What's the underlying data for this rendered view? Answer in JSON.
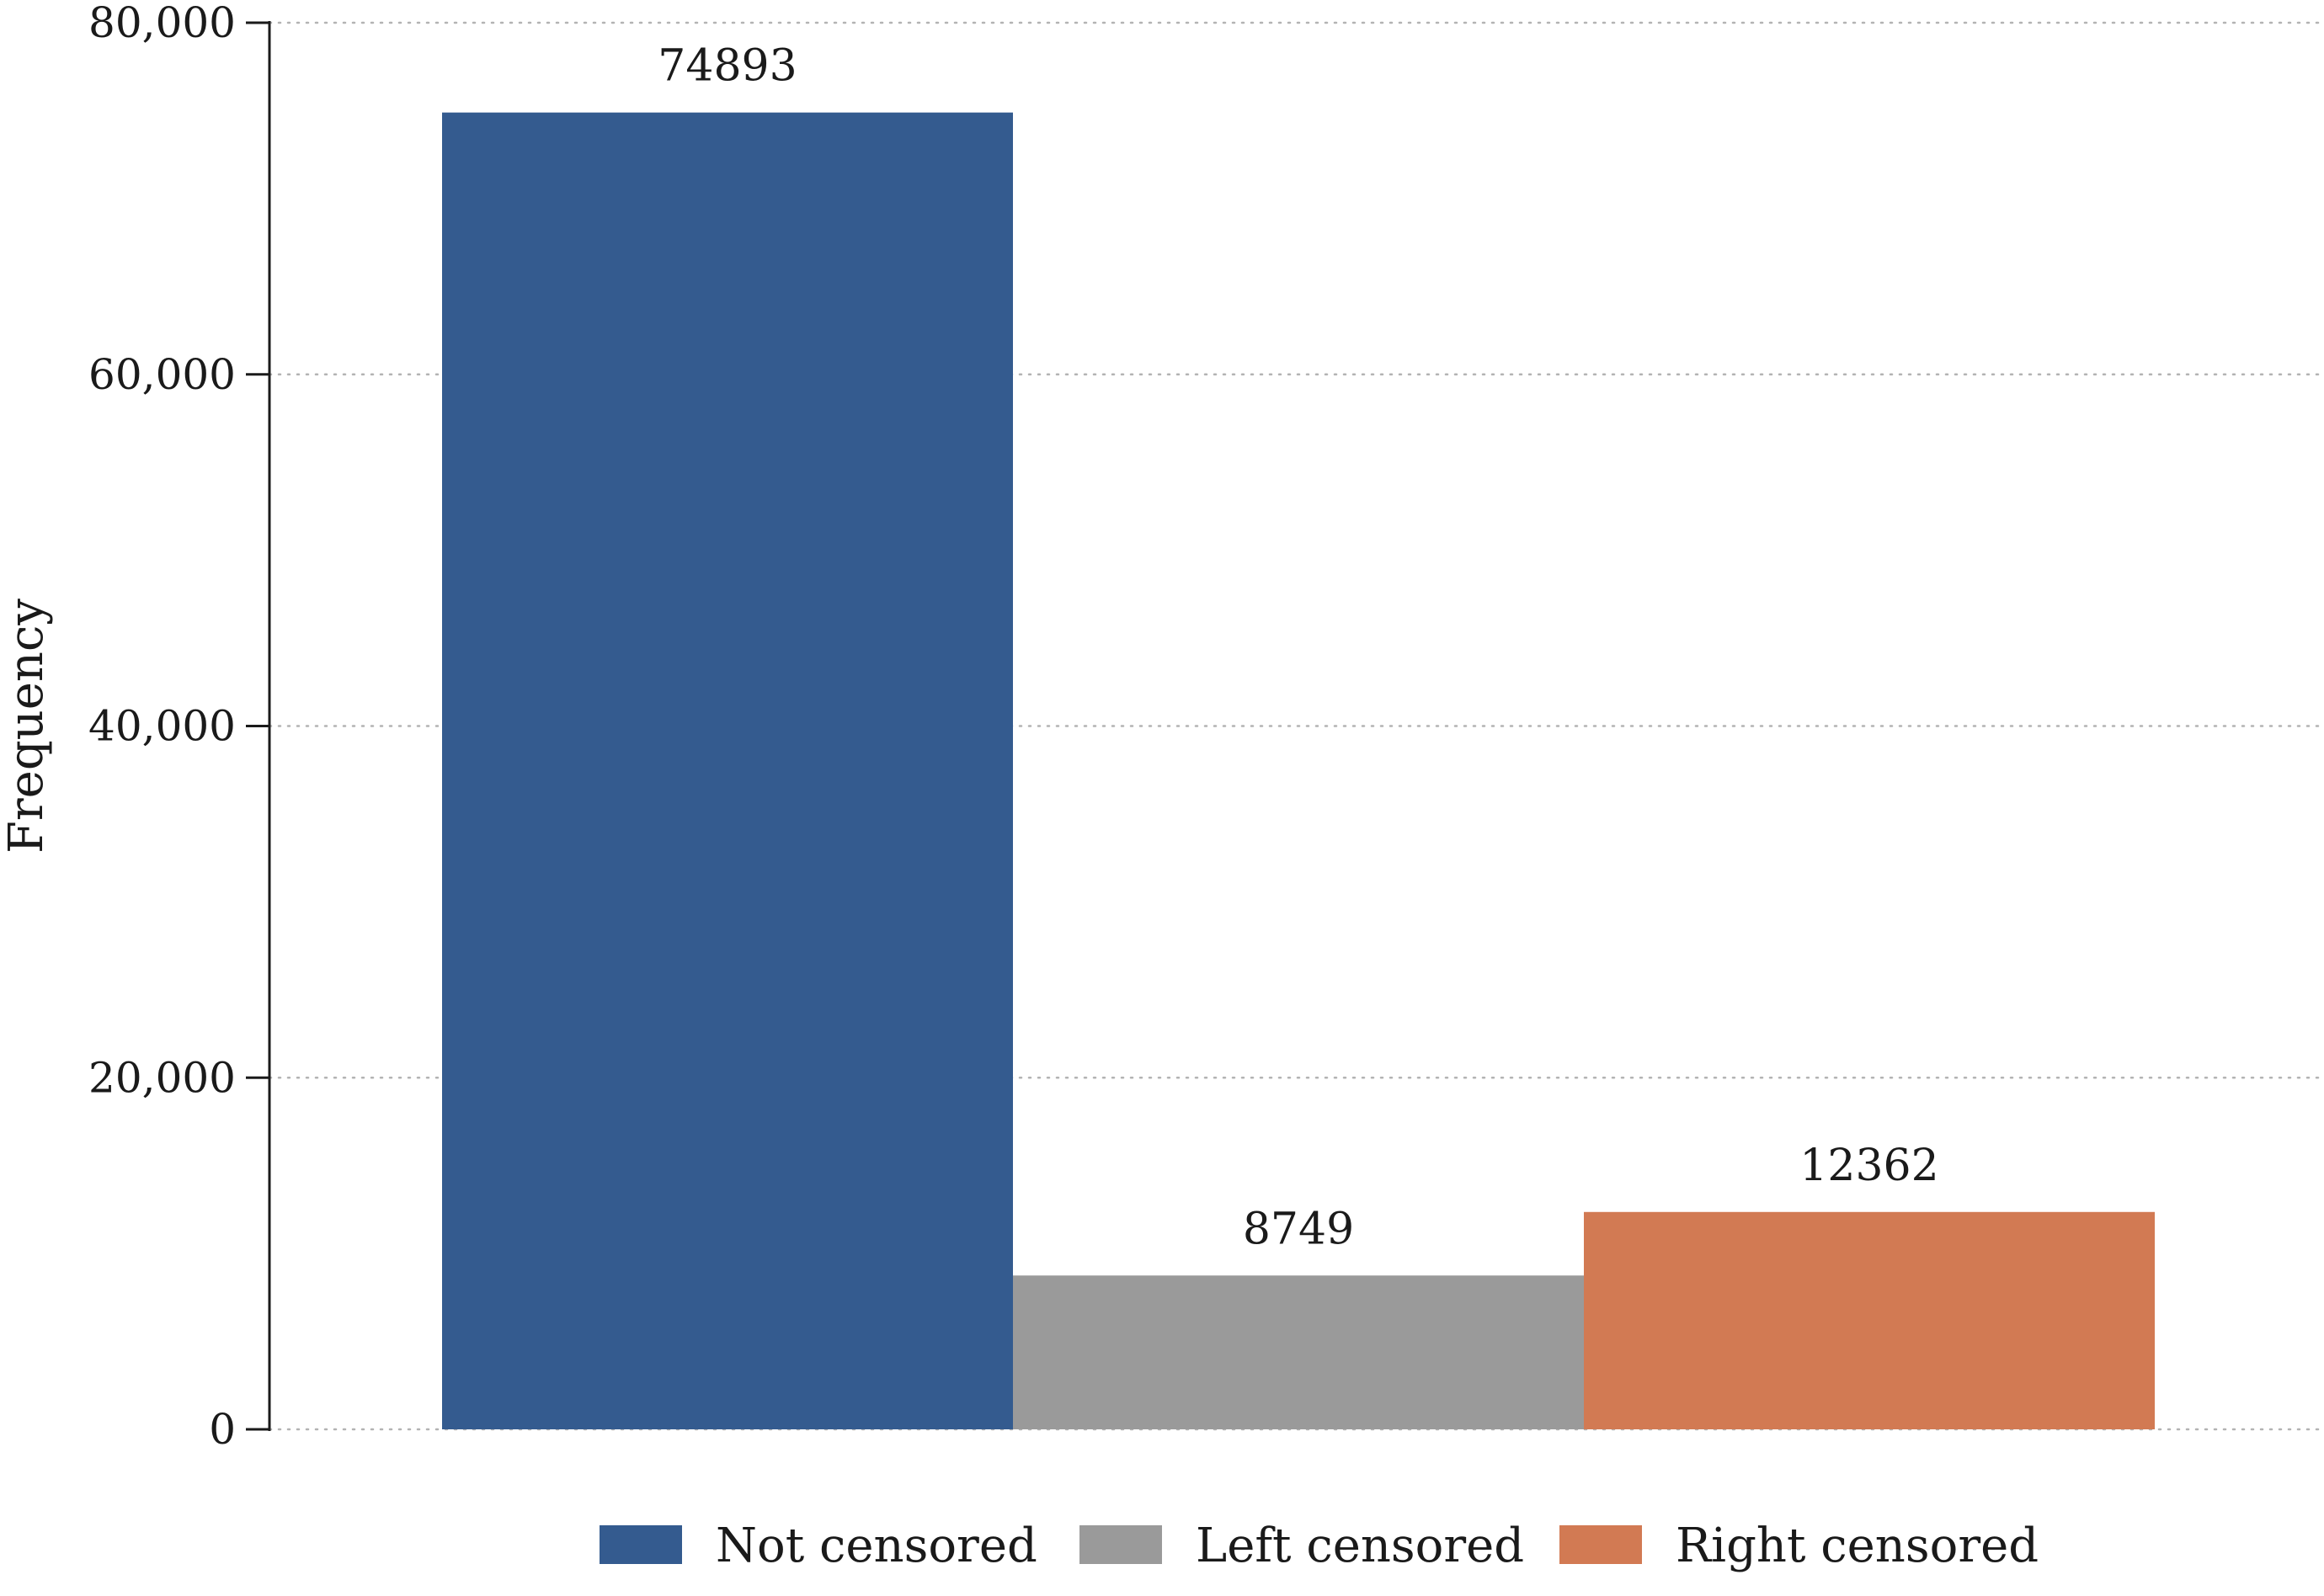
{
  "chart_data": {
    "type": "bar",
    "categories": [
      "Not censored",
      "Left censored",
      "Right censored"
    ],
    "values": [
      74893,
      8749,
      12362
    ],
    "value_labels": [
      "74893",
      "8749",
      "12362"
    ],
    "colors": [
      "#345b8f",
      "#9a9a9a",
      "#d27a53"
    ],
    "title": "",
    "xlabel": "",
    "ylabel": "Frequency",
    "ylim": [
      0,
      80000
    ],
    "yticks": [
      0,
      20000,
      40000,
      60000,
      80000
    ],
    "ytick_labels": [
      "0",
      "20,000",
      "40,000",
      "60,000",
      "80,000"
    ],
    "grid": true,
    "grid_style": "dotted",
    "legend": {
      "placement": "bottom",
      "entries": [
        "Not censored",
        "Left censored",
        "Right censored"
      ]
    }
  }
}
